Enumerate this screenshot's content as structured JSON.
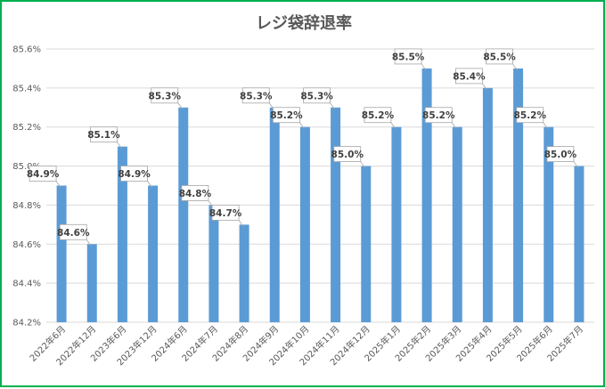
{
  "chart_data": {
    "type": "bar",
    "title": "レジ袋辞退率",
    "categories": [
      "2022年6月",
      "2022年12月",
      "2023年6月",
      "2023年12月",
      "2024年6月",
      "2024年7月",
      "2024年8月",
      "2024年9月",
      "2024年10月",
      "2024年11月",
      "2024年12月",
      "2025年1月",
      "2025年2月",
      "2025年3月",
      "2025年4月",
      "2025年5月",
      "2025年6月",
      "2025年7月"
    ],
    "values": [
      84.9,
      84.6,
      85.1,
      84.9,
      85.3,
      84.8,
      84.7,
      85.3,
      85.2,
      85.3,
      85.0,
      85.2,
      85.5,
      85.2,
      85.4,
      85.5,
      85.2,
      85.0
    ],
    "data_labels": [
      "84.9%",
      "84.6%",
      "85.1%",
      "84.9%",
      "85.3%",
      "84.8%",
      "84.7%",
      "85.3%",
      "85.2%",
      "85.3%",
      "85.0%",
      "85.2%",
      "85.5%",
      "85.2%",
      "85.4%",
      "85.5%",
      "85.2%",
      "85.0%"
    ],
    "ylim": [
      84.2,
      85.6
    ],
    "yticks": [
      84.2,
      84.4,
      84.6,
      84.8,
      85.0,
      85.2,
      85.4,
      85.6
    ],
    "ytick_labels": [
      "84.2%",
      "84.4%",
      "84.6%",
      "84.8%",
      "85.0%",
      "85.2%",
      "85.4%",
      "85.6%"
    ],
    "xlabel": "",
    "ylabel": "",
    "grid": true,
    "legend": "none",
    "bar_color": "#5b9bd5",
    "frame_color": "#00b050"
  }
}
